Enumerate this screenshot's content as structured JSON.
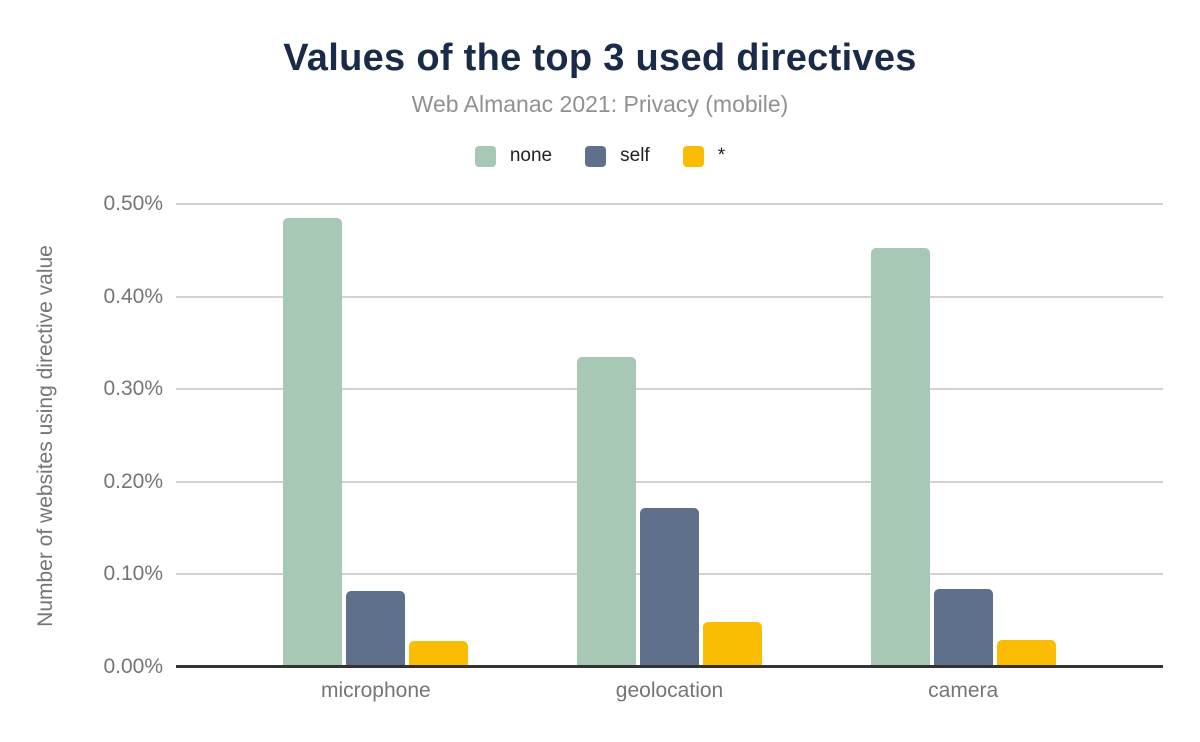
{
  "header": {
    "title": "Values of the top 3 used directives",
    "subtitle": "Web Almanac 2021: Privacy (mobile)"
  },
  "colors": {
    "title": "#1A2B49",
    "subtitle": "#919191",
    "axis_text": "#757575",
    "legend_text": "#202124",
    "gridline": "#D2D2D2",
    "baseline": "#333333",
    "series_none": "#A6C8B5",
    "series_self": "#5F718A",
    "series_star": "#FBBC04"
  },
  "chart_data": {
    "type": "bar",
    "title": "Values of the top 3 used directives",
    "subtitle": "Web Almanac 2021: Privacy (mobile)",
    "categories": [
      "microphone",
      "geolocation",
      "camera"
    ],
    "series": [
      {
        "name": "none",
        "color": "#A6C8B5",
        "values": [
          0.485,
          0.335,
          0.453
        ]
      },
      {
        "name": "self",
        "color": "#5F718A",
        "values": [
          0.082,
          0.172,
          0.084
        ]
      },
      {
        "name": "*",
        "color": "#FBBC04",
        "values": [
          0.028,
          0.049,
          0.029
        ]
      }
    ],
    "xlabel": "",
    "ylabel": "Number of websites using directive value",
    "ylim": [
      0,
      0.5
    ],
    "yticks": [
      {
        "label": "0.00%",
        "value": 0.0
      },
      {
        "label": "0.10%",
        "value": 0.1
      },
      {
        "label": "0.20%",
        "value": 0.2
      },
      {
        "label": "0.30%",
        "value": 0.3
      },
      {
        "label": "0.40%",
        "value": 0.4
      },
      {
        "label": "0.50%",
        "value": 0.5
      }
    ],
    "grid": "horizontal",
    "legend_position": "top",
    "units": "percent of websites"
  }
}
